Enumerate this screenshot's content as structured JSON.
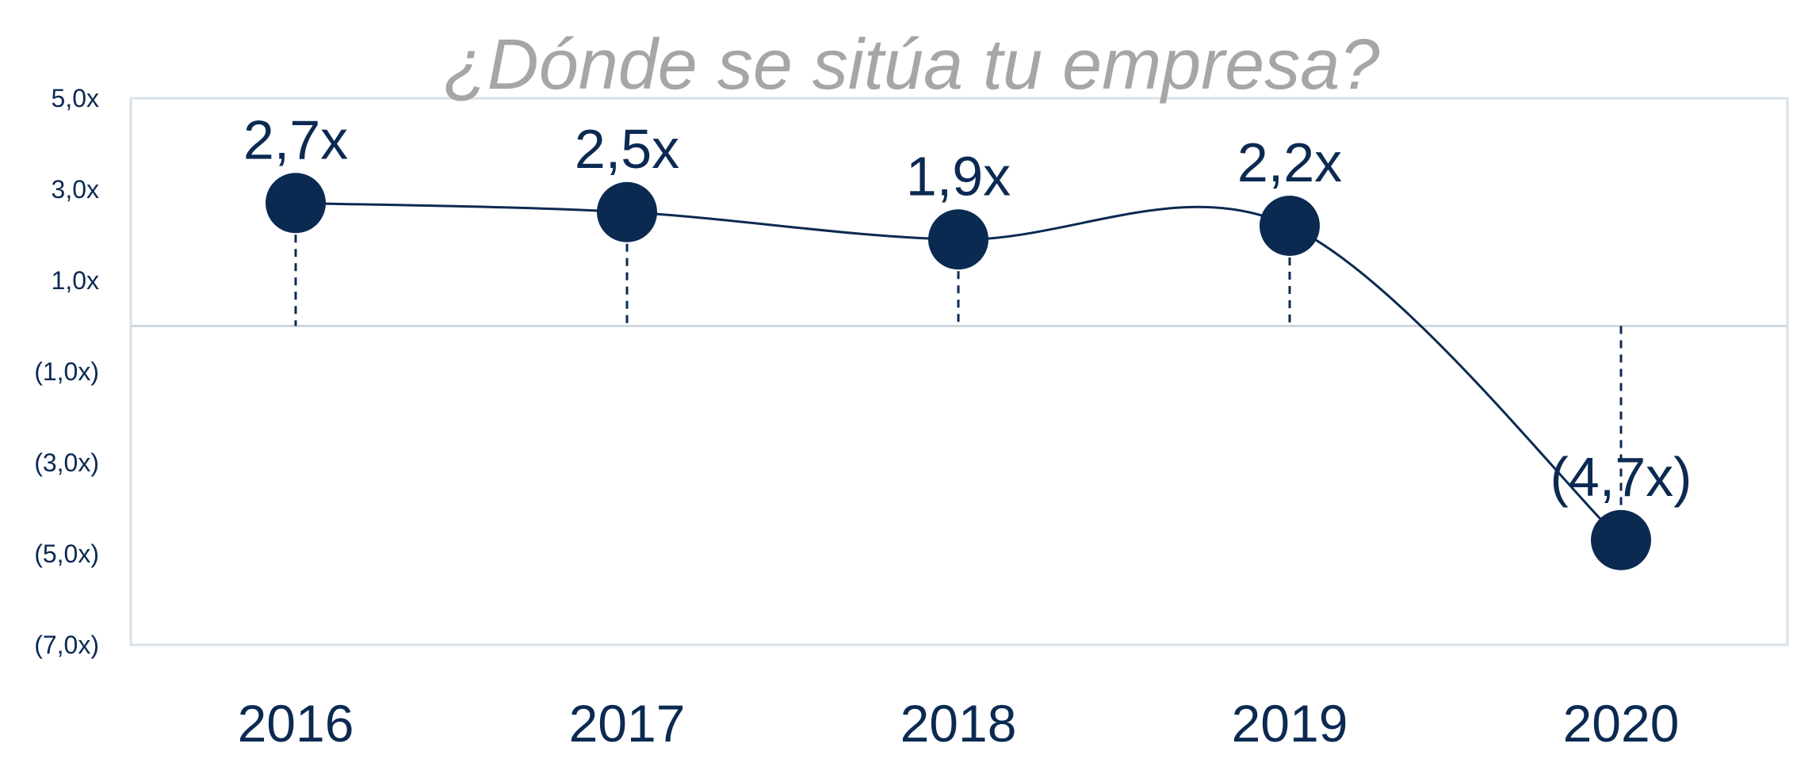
{
  "chart_data": {
    "type": "line",
    "title": "¿Dónde se sitúa tu empresa?",
    "categories": [
      "2016",
      "2017",
      "2018",
      "2019",
      "2020"
    ],
    "series": [
      {
        "values": [
          2.7,
          2.5,
          1.9,
          2.2,
          -4.7
        ],
        "data_labels": [
          "2,7x",
          "2,5x",
          "1,9x",
          "2,2x",
          "(4,7x)"
        ]
      }
    ],
    "ylim": [
      -7.0,
      5.0
    ],
    "yticks": [
      5.0,
      3.0,
      1.0,
      -1.0,
      -3.0,
      -5.0,
      -7.0
    ],
    "ytick_labels": [
      "5,0x",
      "3,0x",
      "1,0x",
      "(1,0x)",
      "(3,0x)",
      "(5,0x)",
      "(7,0x)"
    ],
    "xlabel": "",
    "ylabel": "",
    "grid": false,
    "legend": "none",
    "colors": {
      "series": "#0b2a52",
      "title": "#a6a6a6",
      "frame": "#d9e1ea",
      "zero_line": "#cfd6df"
    }
  }
}
